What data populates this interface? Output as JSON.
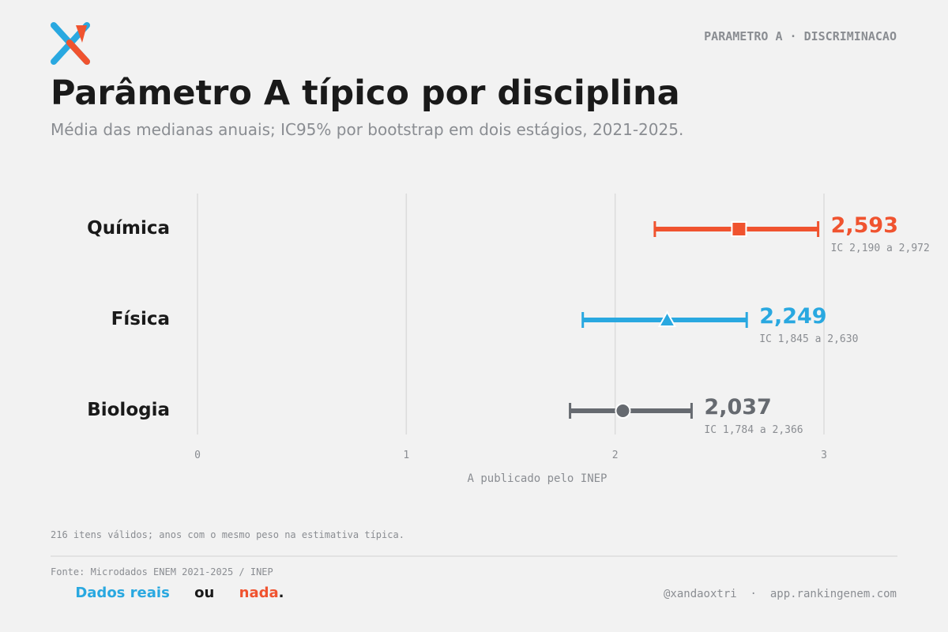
{
  "header": {
    "kicker": "PARAMETRO A · DISCRIMINACAO"
  },
  "chart_data": {
    "type": "errorbar",
    "title": "Parâmetro A típico por disciplina",
    "subtitle": "Média das medianas anuais; IC95% por bootstrap em dois estágios, 2021-2025.",
    "categories": [
      "Química",
      "Física",
      "Biologia"
    ],
    "values": [
      2.593,
      2.249,
      2.037
    ],
    "value_labels": [
      "2,593",
      "2,249",
      "2,037"
    ],
    "ci_low": [
      2.19,
      1.845,
      1.784
    ],
    "ci_high": [
      2.972,
      2.63,
      2.366
    ],
    "ci_labels": [
      "IC 2,190 a 2,972",
      "IC 1,845 a 2,630",
      "IC 1,784 a 2,366"
    ],
    "colors": [
      "#f0532f",
      "#29a8e0",
      "#666a70"
    ],
    "markers": [
      "square",
      "triangle",
      "circle"
    ],
    "xlim": [
      0,
      3
    ],
    "xticks": [
      0,
      1,
      2,
      3
    ],
    "xlabel": "A publicado pelo INEP",
    "grid": true
  },
  "footer": {
    "note": "216 itens válidos; anos com o mesmo peso na estimativa típica.",
    "source": "Fonte: Microdados ENEM 2021-2025 / INEP",
    "tagline": [
      "Dados reais",
      "ou",
      "nada",
      "."
    ],
    "handle": "@xandaoxtri  ·  app.rankingenem.com"
  }
}
